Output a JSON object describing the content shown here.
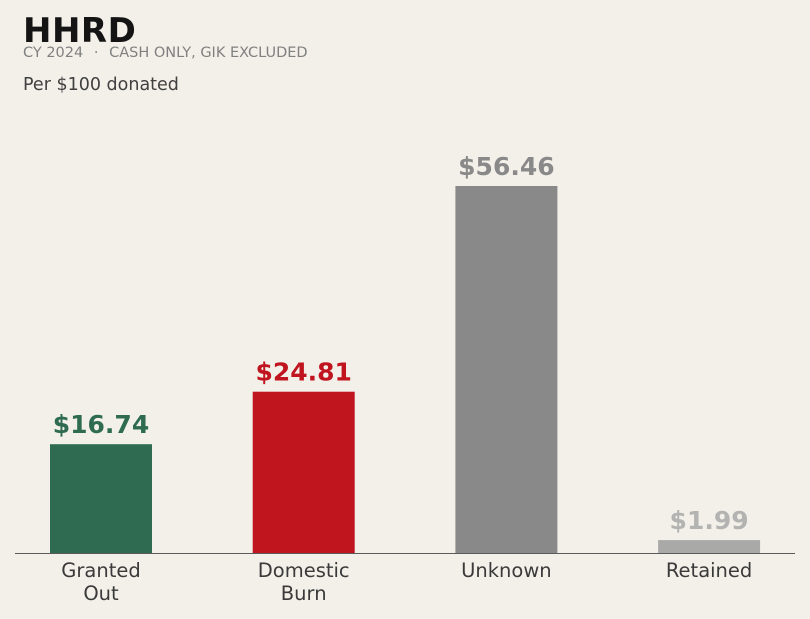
{
  "header": {
    "title": "HHRD",
    "subtitle_period": "CY 2024",
    "subtitle_separator": "·",
    "subtitle_scope": "CASH ONLY, GIK EXCLUDED",
    "unit_label": "Per $100 donated"
  },
  "chart_data": {
    "type": "bar",
    "title": "HHRD",
    "subtitle": "CY 2024 · CASH ONLY, GIK EXCLUDED",
    "ylabel": "Per $100 donated",
    "xlabel": "",
    "categories": [
      [
        "Granted",
        "Out"
      ],
      [
        "Domestic",
        "Burn"
      ],
      [
        "Unknown"
      ],
      [
        "Retained"
      ]
    ],
    "values": [
      16.74,
      24.81,
      56.46,
      1.99
    ],
    "value_labels": [
      "$16.74",
      "$24.81",
      "$56.46",
      "$1.99"
    ],
    "colors": [
      "#2e6b50",
      "#c0141f",
      "#898989",
      "#a9a9a7"
    ],
    "label_colors": [
      "#2e6b50",
      "#c0141f",
      "#898989",
      "#b3b3b1"
    ],
    "ylim": [
      0,
      56.46
    ],
    "grid": false,
    "legend": "none"
  }
}
